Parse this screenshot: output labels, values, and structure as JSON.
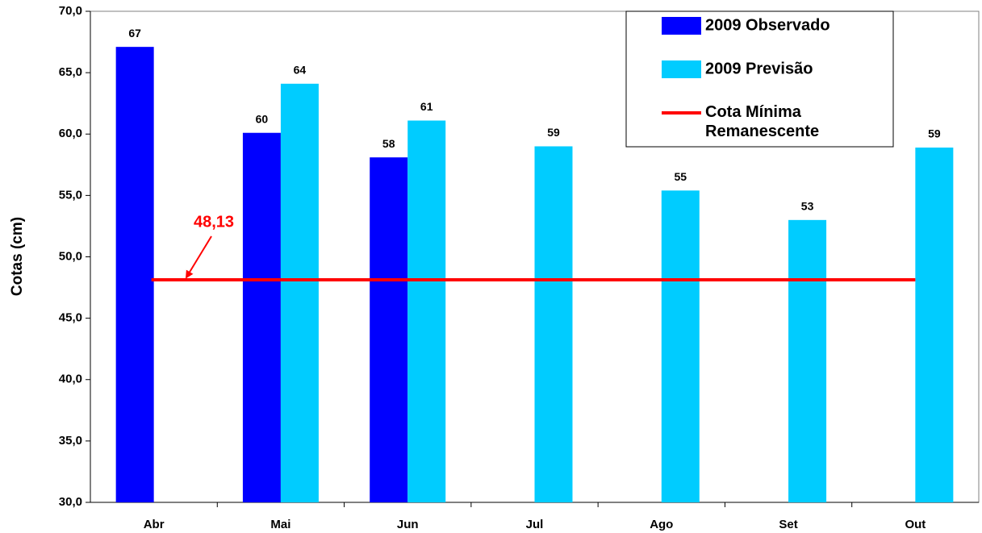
{
  "chart_data": {
    "type": "bar",
    "y_axis_label": "Cotas (cm)",
    "categories": [
      "Abr",
      "Mai",
      "Jun",
      "Jul",
      "Ago",
      "Set",
      "Out"
    ],
    "series": [
      {
        "name": "2009 Observado",
        "color": "#0000ff",
        "type": "bar",
        "values": [
          67.1,
          60.1,
          58.1,
          null,
          null,
          null,
          null
        ],
        "value_labels": [
          "67",
          "60",
          "58",
          null,
          null,
          null,
          null
        ]
      },
      {
        "name": "2009 Previsão",
        "color": "#00ccff",
        "type": "bar",
        "values": [
          null,
          64.1,
          61.1,
          59.0,
          55.4,
          53.0,
          58.9
        ],
        "value_labels": [
          null,
          "64",
          "61",
          "59",
          "55",
          "53",
          "59"
        ]
      },
      {
        "name": "Cota Mínima Remanescente",
        "color": "#ff0000",
        "type": "line",
        "values": [
          48.13,
          48.13,
          48.13,
          48.13,
          48.13,
          48.13,
          48.13
        ]
      }
    ],
    "annotations": [
      {
        "text": "48,13",
        "color": "#ff0000"
      }
    ],
    "ylim": [
      30,
      70
    ],
    "yticks": [
      {
        "value": 30,
        "label": "30,0"
      },
      {
        "value": 35,
        "label": "35,0"
      },
      {
        "value": 40,
        "label": "40,0"
      },
      {
        "value": 45,
        "label": "45,0"
      },
      {
        "value": 50,
        "label": "50,0"
      },
      {
        "value": 55,
        "label": "55,0"
      },
      {
        "value": 60,
        "label": "60,0"
      },
      {
        "value": 65,
        "label": "65,0"
      },
      {
        "value": 70,
        "label": "70,0"
      }
    ]
  }
}
